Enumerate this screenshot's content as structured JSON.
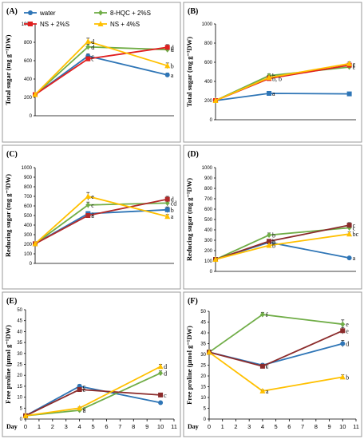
{
  "figure": {
    "legend_labels": [
      "water",
      "8-HQC + 2%S",
      "NS + 2%S",
      "NS + 4%S"
    ]
  },
  "chart_data": [
    {
      "type": "line",
      "panel": "(A)",
      "ylabel": "Total sugar (mg g⁻¹DW)",
      "ylim": [
        0,
        1000
      ],
      "yticks": [
        0,
        200,
        400,
        600,
        800,
        1000
      ],
      "x": [
        0,
        4,
        10
      ],
      "series": [
        {
          "name": "water",
          "color": "#2e75b6",
          "marker": "circle",
          "values": [
            230,
            650,
            445
          ],
          "errors": [
            0,
            25,
            20
          ],
          "labels": [
            "",
            "c",
            "a"
          ]
        },
        {
          "name": "8-HQC + 2%S",
          "color": "#70ad47",
          "marker": "diamond",
          "values": [
            230,
            750,
            720
          ],
          "errors": [
            0,
            30,
            25
          ],
          "labels": [
            "",
            "d",
            "d"
          ]
        },
        {
          "name": "NS + 2%S",
          "color": "#e02020",
          "marker": "square",
          "values": [
            230,
            620,
            745
          ],
          "errors": [
            0,
            25,
            30
          ],
          "labels": [
            "",
            "c",
            "d"
          ]
        },
        {
          "name": "NS + 4%S",
          "color": "#ffc000",
          "marker": "triangle",
          "values": [
            230,
            810,
            545
          ],
          "errors": [
            0,
            35,
            30
          ],
          "labels": [
            "",
            "d",
            "b"
          ]
        }
      ]
    },
    {
      "type": "line",
      "panel": "(B)",
      "ylabel": "Total sugar (mg g⁻¹DW)",
      "ylim": [
        0,
        1000
      ],
      "yticks": [
        0,
        200,
        400,
        600,
        800,
        1000
      ],
      "x": [
        0,
        4,
        10
      ],
      "series": [
        {
          "name": "water",
          "color": "#2e75b6",
          "marker": "square",
          "values": [
            200,
            275,
            270
          ],
          "errors": [
            0,
            10,
            10
          ],
          "labels": [
            "",
            "a",
            ""
          ]
        },
        {
          "name": "8-HQC + 2%S",
          "color": "#70ad47",
          "marker": "diamond",
          "values": [
            200,
            460,
            550
          ],
          "errors": [
            0,
            20,
            25
          ],
          "labels": [
            "",
            "b",
            "c"
          ]
        },
        {
          "name": "NS + 2%S",
          "color": "#e02020",
          "marker": "square",
          "values": [
            200,
            430,
            570
          ],
          "errors": [
            0,
            20,
            20
          ],
          "labels": [
            "",
            "b, b",
            "c"
          ]
        },
        {
          "name": "NS + 4%S",
          "color": "#ffc000",
          "marker": "triangle",
          "values": [
            200,
            440,
            585
          ],
          "errors": [
            0,
            20,
            20
          ],
          "labels": [
            "",
            "",
            "c"
          ]
        }
      ]
    },
    {
      "type": "line",
      "panel": "(C)",
      "ylabel": "Reducing sugar (mg g⁻¹DW)",
      "ylim": [
        0,
        1000
      ],
      "yticks": [
        0,
        100,
        200,
        300,
        400,
        500,
        600,
        700,
        800,
        900,
        1000
      ],
      "x": [
        0,
        4,
        10
      ],
      "series": [
        {
          "name": "water",
          "color": "#2e75b6",
          "marker": "square",
          "values": [
            205,
            520,
            560
          ],
          "errors": [
            0,
            20,
            30
          ],
          "labels": [
            "",
            "a",
            "b"
          ]
        },
        {
          "name": "8-HQC + 2%S",
          "color": "#70ad47",
          "marker": "diamond",
          "values": [
            205,
            610,
            630
          ],
          "errors": [
            0,
            30,
            30
          ],
          "labels": [
            "",
            "c",
            "cd"
          ]
        },
        {
          "name": "NS + 2%S",
          "color": "#b22a2a",
          "marker": "square",
          "values": [
            205,
            500,
            670
          ],
          "errors": [
            0,
            20,
            30
          ],
          "labels": [
            "",
            "a",
            "d"
          ]
        },
        {
          "name": "NS + 4%S",
          "color": "#ffc000",
          "marker": "triangle",
          "values": [
            205,
            700,
            490
          ],
          "errors": [
            0,
            40,
            20
          ],
          "labels": [
            "",
            "e",
            "a"
          ]
        }
      ]
    },
    {
      "type": "line",
      "panel": "(D)",
      "ylabel": "Reducing sugar (mg g⁻¹DW)",
      "ylim": [
        0,
        1000
      ],
      "yticks": [
        0,
        100,
        200,
        300,
        400,
        500,
        600,
        700,
        800,
        900,
        1000
      ],
      "x": [
        0,
        4,
        10
      ],
      "series": [
        {
          "name": "water",
          "color": "#2e75b6",
          "marker": "circle",
          "values": [
            115,
            280,
            130
          ],
          "errors": [
            0,
            15,
            8
          ],
          "labels": [
            "",
            "b",
            "a"
          ]
        },
        {
          "name": "8-HQC + 2%S",
          "color": "#70ad47",
          "marker": "diamond",
          "values": [
            115,
            350,
            420
          ],
          "errors": [
            0,
            20,
            25
          ],
          "labels": [
            "",
            "b",
            "c"
          ]
        },
        {
          "name": "NS + 2%S",
          "color": "#8b2b2b",
          "marker": "square",
          "values": [
            115,
            290,
            445
          ],
          "errors": [
            0,
            15,
            25
          ],
          "labels": [
            "",
            "b",
            "c"
          ]
        },
        {
          "name": "NS + 4%S",
          "color": "#ffc000",
          "marker": "triangle",
          "values": [
            115,
            250,
            360
          ],
          "errors": [
            0,
            15,
            20
          ],
          "labels": [
            "",
            "b",
            "bc"
          ]
        }
      ]
    },
    {
      "type": "line",
      "panel": "(E)",
      "ylabel": "Free proline (μmol g⁻¹DW)",
      "ylim": [
        0,
        50
      ],
      "yticks": [
        0,
        5,
        10,
        15,
        20,
        25,
        30,
        35,
        40,
        45,
        50
      ],
      "xticks": [
        0,
        1,
        2,
        3,
        4,
        5,
        6,
        7,
        8,
        9,
        10,
        11
      ],
      "x": [
        0,
        4,
        10
      ],
      "series": [
        {
          "name": "water",
          "color": "#2e75b6",
          "marker": "circle",
          "values": [
            1.5,
            15,
            7.5
          ],
          "errors": [
            0,
            0.8,
            0.5
          ],
          "labels": [
            "",
            "c",
            ""
          ]
        },
        {
          "name": "8-HQC + 2%S",
          "color": "#70ad47",
          "marker": "diamond",
          "values": [
            1.5,
            4,
            21
          ],
          "errors": [
            0,
            0.5,
            1
          ],
          "labels": [
            "",
            "a",
            "d"
          ]
        },
        {
          "name": "NS + 2%S",
          "color": "#8b2b2b",
          "marker": "square",
          "values": [
            1.5,
            13.5,
            11
          ],
          "errors": [
            0,
            0.8,
            0.6
          ],
          "labels": [
            "",
            "c",
            "c"
          ]
        },
        {
          "name": "NS + 4%S",
          "color": "#ffc000",
          "marker": "triangle",
          "values": [
            1.5,
            5,
            24
          ],
          "errors": [
            0,
            0.5,
            1
          ],
          "labels": [
            "",
            "a",
            "d"
          ]
        }
      ]
    },
    {
      "type": "line",
      "panel": "(F)",
      "ylabel": "Free proline (μmol g⁻¹DW)",
      "ylim": [
        0,
        50
      ],
      "yticks": [
        0,
        5,
        10,
        15,
        20,
        25,
        30,
        35,
        40,
        45,
        50
      ],
      "xticks": [
        0,
        1,
        2,
        3,
        4,
        5,
        6,
        7,
        8,
        9,
        10,
        11
      ],
      "x": [
        0,
        4,
        10
      ],
      "series": [
        {
          "name": "water",
          "color": "#2e75b6",
          "marker": "circle",
          "values": [
            31,
            25,
            35
          ],
          "errors": [
            1,
            0.8,
            1.5
          ],
          "labels": [
            "",
            "c",
            "d"
          ]
        },
        {
          "name": "8-HQC + 2%S",
          "color": "#70ad47",
          "marker": "diamond",
          "values": [
            31,
            48.5,
            44
          ],
          "errors": [
            1,
            1,
            2
          ],
          "labels": [
            "",
            "f",
            "e"
          ]
        },
        {
          "name": "NS + 2%S",
          "color": "#8b2b2b",
          "marker": "square",
          "values": [
            31,
            24.5,
            41
          ],
          "errors": [
            1,
            0.8,
            1.5
          ],
          "labels": [
            "",
            "c",
            "e"
          ]
        },
        {
          "name": "NS + 4%S",
          "color": "#ffc000",
          "marker": "triangle",
          "values": [
            31,
            13,
            19.5
          ],
          "errors": [
            1,
            0.5,
            1
          ],
          "labels": [
            "",
            "a",
            "b"
          ]
        }
      ]
    }
  ],
  "x_axis_title": "Day"
}
